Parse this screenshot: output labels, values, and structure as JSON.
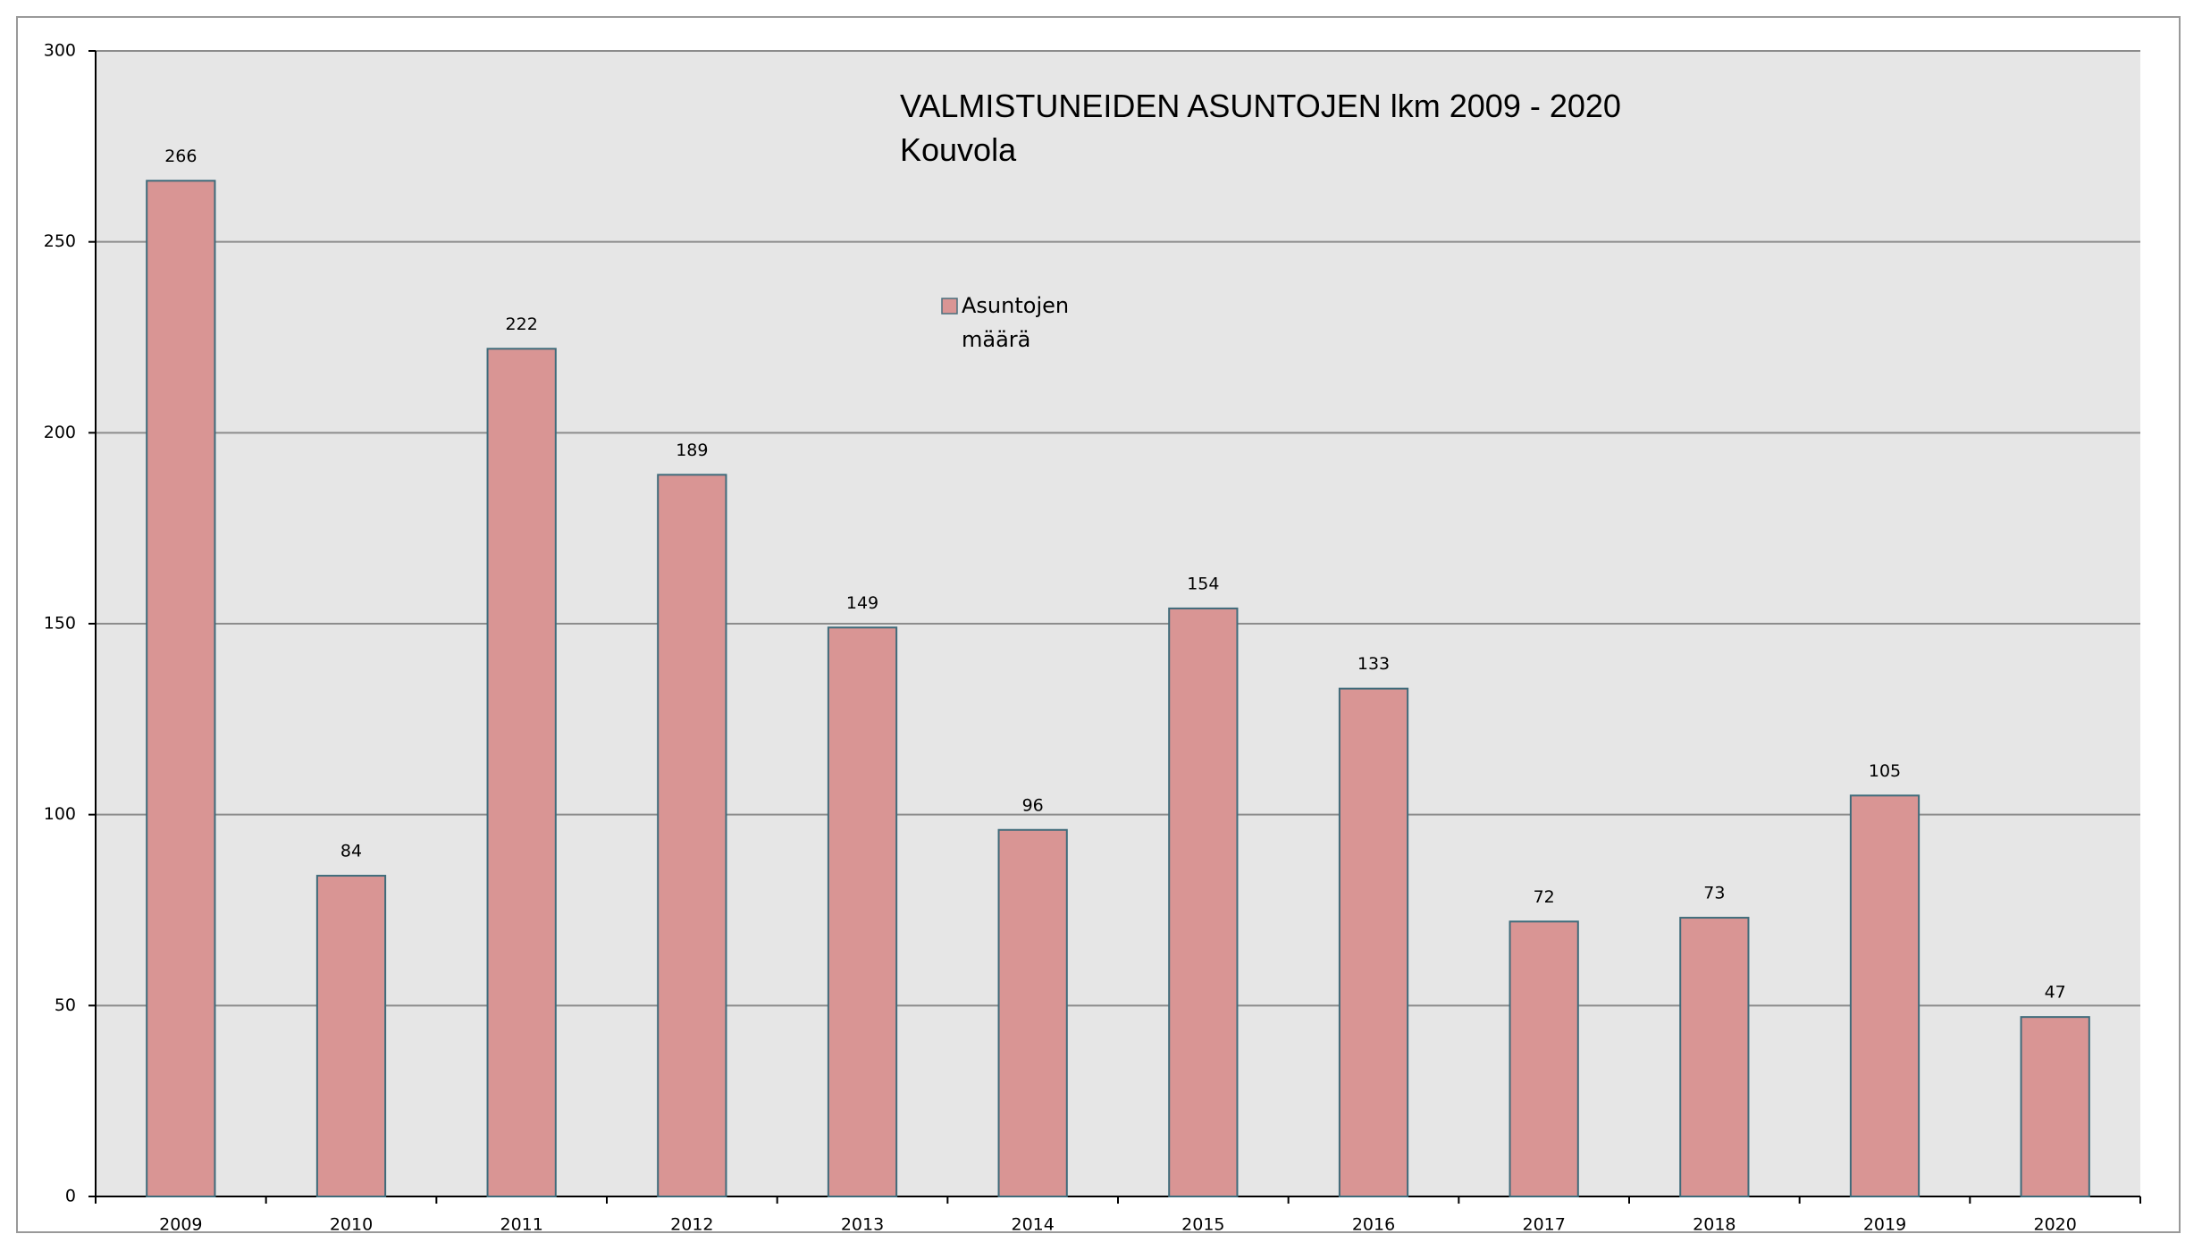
{
  "chart_data": {
    "type": "bar",
    "title": "VALMISTUNEIDEN ASUNTOJEN lkm 2009 - 2020",
    "subtitle": "Kouvola",
    "categories": [
      "2009",
      "2010",
      "2011",
      "2012",
      "2013",
      "2014",
      "2015",
      "2016",
      "2017",
      "2018",
      "2019",
      "2020"
    ],
    "series": [
      {
        "name": "Asuntojen määrä",
        "color": "#d99594",
        "values": [
          266,
          84,
          222,
          189,
          149,
          96,
          154,
          133,
          72,
          73,
          105,
          47
        ]
      }
    ],
    "ylim": [
      0,
      300
    ],
    "yticks": [
      0,
      50,
      100,
      150,
      200,
      250,
      300
    ],
    "grid": true
  }
}
